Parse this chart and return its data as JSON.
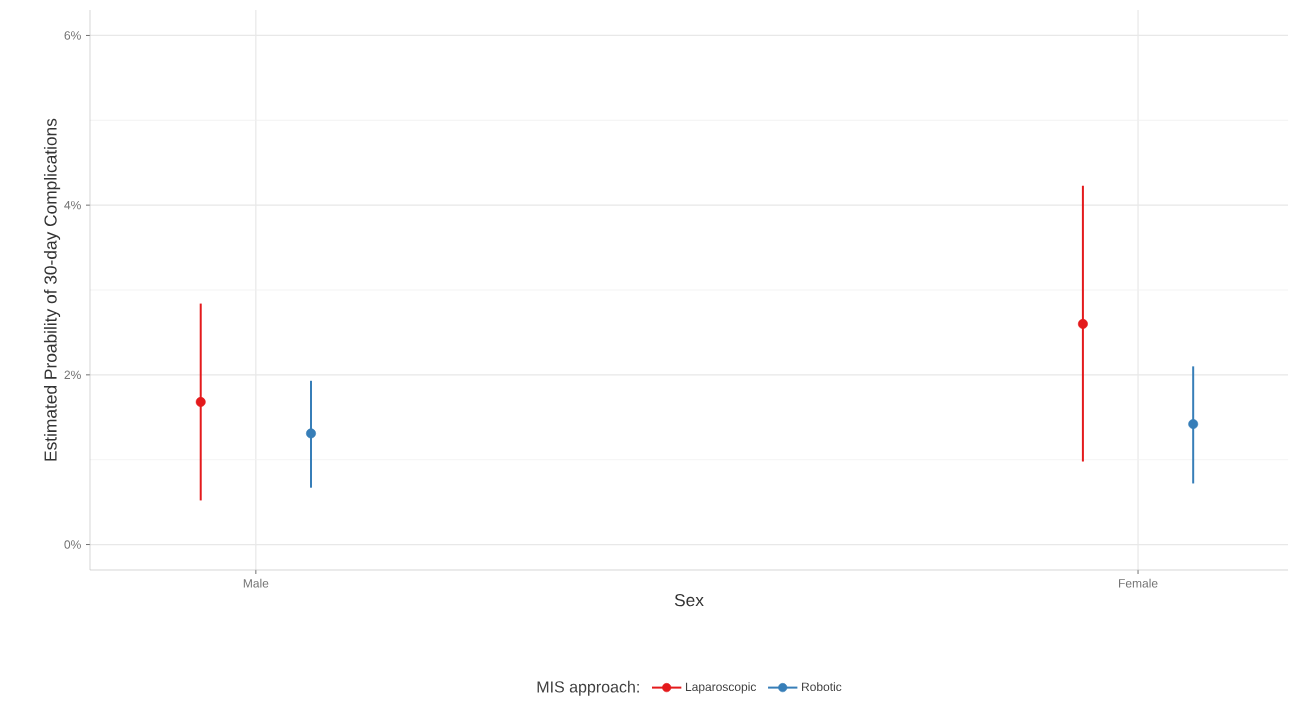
{
  "chart_data": {
    "type": "scatter",
    "xlabel": "Sex",
    "ylabel": "Estimated Proability of 30-day Complications",
    "legend_title": "MIS approach:",
    "categories": [
      "Male",
      "Female"
    ],
    "series": [
      {
        "name": "Laparoscopic",
        "color": "#e41a1c",
        "values": [
          1.68,
          2.6
        ],
        "errors": [
          [
            0.52,
            2.84
          ],
          [
            0.98,
            4.23
          ]
        ]
      },
      {
        "name": "Robotic",
        "color": "#377eb8",
        "values": [
          1.31,
          1.42
        ],
        "errors": [
          [
            0.67,
            1.93
          ],
          [
            0.72,
            2.1
          ]
        ]
      }
    ],
    "ylim": [
      -0.3,
      6.3
    ],
    "yticks": [
      {
        "value": 0,
        "label": "0%"
      },
      {
        "value": 2,
        "label": "2%"
      },
      {
        "value": 4,
        "label": "4%"
      },
      {
        "value": 6,
        "label": "6%"
      }
    ],
    "grid": true,
    "legend": "bottom",
    "marker": "circle"
  }
}
